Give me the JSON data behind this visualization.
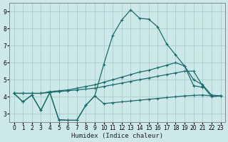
{
  "xlabel": "Humidex (Indice chaleur)",
  "bg_color": "#cce8e8",
  "grid_color": "#aacccc",
  "line_color": "#1a6b6b",
  "xlim": [
    -0.5,
    23.5
  ],
  "ylim": [
    2.5,
    9.5
  ],
  "xticks": [
    0,
    1,
    2,
    3,
    4,
    5,
    6,
    7,
    8,
    9,
    10,
    11,
    12,
    13,
    14,
    15,
    16,
    17,
    18,
    19,
    20,
    21,
    22,
    23
  ],
  "yticks": [
    3,
    4,
    5,
    6,
    7,
    8,
    9
  ],
  "line_spike_x": [
    0,
    1,
    2,
    3,
    4,
    5,
    6,
    7,
    8,
    9,
    10,
    11,
    12,
    13,
    14,
    15,
    16,
    17,
    18,
    19,
    20,
    21
  ],
  "line_spike_y": [
    4.2,
    3.7,
    4.1,
    3.2,
    4.25,
    2.65,
    2.62,
    2.62,
    3.5,
    4.05,
    5.9,
    7.6,
    8.5,
    9.1,
    8.6,
    8.55,
    8.1,
    7.1,
    6.45,
    5.8,
    4.65,
    4.55
  ],
  "line_zigzag_x": [
    0,
    1,
    2,
    3,
    4,
    5,
    6,
    7,
    8,
    9,
    10,
    11,
    12,
    13,
    14,
    15,
    16,
    17,
    18,
    19,
    20,
    21,
    22,
    23
  ],
  "line_zigzag_y": [
    4.2,
    3.7,
    4.1,
    3.2,
    4.25,
    2.65,
    2.62,
    2.62,
    3.5,
    4.05,
    3.6,
    3.65,
    3.7,
    3.75,
    3.8,
    3.85,
    3.9,
    3.95,
    4.0,
    4.05,
    4.08,
    4.1,
    4.05,
    4.05
  ],
  "line_upper_x": [
    0,
    1,
    2,
    3,
    4,
    5,
    6,
    7,
    8,
    9,
    10,
    11,
    12,
    13,
    14,
    15,
    16,
    17,
    18,
    19,
    20,
    21,
    22,
    23
  ],
  "line_upper_y": [
    4.2,
    4.2,
    4.2,
    4.2,
    4.3,
    4.35,
    4.4,
    4.5,
    4.6,
    4.7,
    4.85,
    5.0,
    5.15,
    5.3,
    5.45,
    5.55,
    5.7,
    5.85,
    6.0,
    5.8,
    5.0,
    4.7,
    4.1,
    4.05
  ],
  "line_lower_x": [
    0,
    1,
    2,
    3,
    4,
    5,
    6,
    7,
    8,
    9,
    10,
    11,
    12,
    13,
    14,
    15,
    16,
    17,
    18,
    19,
    20,
    21,
    22,
    23
  ],
  "line_lower_y": [
    4.2,
    4.2,
    4.2,
    4.2,
    4.25,
    4.3,
    4.35,
    4.4,
    4.45,
    4.5,
    4.6,
    4.7,
    4.8,
    4.9,
    5.0,
    5.1,
    5.2,
    5.3,
    5.4,
    5.5,
    5.5,
    4.65,
    4.0,
    4.05
  ]
}
